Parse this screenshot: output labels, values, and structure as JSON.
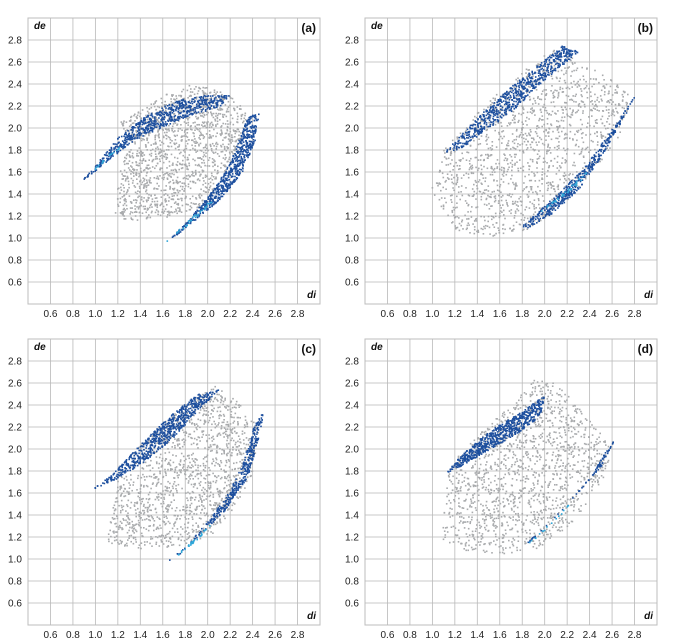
{
  "figure": {
    "colors": {
      "background": "#ffffff",
      "grid": "#b9b9b9",
      "plot_border": "#bdbdbd",
      "scatter_grey": "#a9abad",
      "scatter_blue": "#1d4f9e",
      "scatter_light": "#2fa6d8"
    }
  },
  "chart_data": [
    {
      "panel": "(a)",
      "type": "scatter",
      "xlabel": "di",
      "ylabel": "de",
      "x_ticks": [
        "0.6",
        "0.8",
        "1.0",
        "1.2",
        "1.4",
        "1.6",
        "1.8",
        "2.0",
        "2.2",
        "2.4",
        "2.6",
        "2.8"
      ],
      "y_ticks": [
        "2.8",
        "2.6",
        "2.4",
        "2.2",
        "2.0",
        "1.8",
        "1.6",
        "1.4",
        "1.2",
        "1.0",
        "0.8",
        "0.6"
      ],
      "xlim": [
        0.4,
        3.0
      ],
      "ylim": [
        0.4,
        3.0
      ],
      "grid": true,
      "regions": {
        "grey": [
          [
            1.15,
            1.18
          ],
          [
            1.2,
            1.55
          ],
          [
            1.3,
            1.9
          ],
          [
            1.2,
            2.05
          ],
          [
            1.45,
            2.2
          ],
          [
            1.6,
            2.3
          ],
          [
            1.8,
            2.4
          ],
          [
            2.0,
            2.38
          ],
          [
            2.2,
            2.3
          ],
          [
            2.35,
            2.15
          ],
          [
            2.3,
            1.9
          ],
          [
            2.15,
            1.6
          ],
          [
            1.95,
            1.3
          ],
          [
            1.7,
            1.2
          ],
          [
            1.4,
            1.15
          ]
        ],
        "blue": [
          [
            [
              0.85,
              1.5
            ],
            [
              1.0,
              1.67
            ],
            [
              1.2,
              1.92
            ],
            [
              1.45,
              2.12
            ],
            [
              1.7,
              2.25
            ],
            [
              1.95,
              2.3
            ],
            [
              2.2,
              2.3
            ],
            [
              2.1,
              2.2
            ],
            [
              1.85,
              2.12
            ],
            [
              1.6,
              2.02
            ],
            [
              1.35,
              1.9
            ],
            [
              1.12,
              1.72
            ],
            [
              0.95,
              1.58
            ]
          ],
          [
            [
              1.5,
              0.85
            ],
            [
              1.8,
              1.1
            ],
            [
              2.1,
              1.35
            ],
            [
              2.3,
              1.6
            ],
            [
              2.42,
              1.9
            ],
            [
              2.45,
              2.15
            ],
            [
              2.35,
              2.1
            ],
            [
              2.2,
              1.7
            ],
            [
              2.05,
              1.45
            ],
            [
              1.85,
              1.2
            ],
            [
              1.62,
              0.95
            ]
          ]
        ],
        "light": [
          [
            [
              0.9,
              1.55
            ],
            [
              1.1,
              1.75
            ],
            [
              1.3,
              1.9
            ],
            [
              1.25,
              1.86
            ],
            [
              1.05,
              1.68
            ]
          ],
          [
            [
              1.6,
              0.95
            ],
            [
              1.85,
              1.15
            ],
            [
              2.05,
              1.35
            ],
            [
              2.0,
              1.33
            ],
            [
              1.8,
              1.14
            ]
          ]
        ]
      }
    },
    {
      "panel": "(b)",
      "type": "scatter",
      "xlabel": "di",
      "ylabel": "de",
      "x_ticks": [
        "0.6",
        "0.8",
        "1.0",
        "1.2",
        "1.4",
        "1.6",
        "1.8",
        "2.0",
        "2.2",
        "2.4",
        "2.6",
        "2.8"
      ],
      "y_ticks": [
        "2.8",
        "2.6",
        "2.4",
        "2.2",
        "2.0",
        "1.8",
        "1.6",
        "1.4",
        "1.2",
        "1.0",
        "0.8",
        "0.6"
      ],
      "xlim": [
        0.4,
        3.0
      ],
      "ylim": [
        0.4,
        3.0
      ],
      "grid": true,
      "regions": {
        "grey": [
          [
            0.98,
            1.45
          ],
          [
            1.05,
            1.75
          ],
          [
            1.3,
            2.05
          ],
          [
            1.6,
            2.35
          ],
          [
            1.9,
            2.6
          ],
          [
            2.1,
            2.75
          ],
          [
            2.3,
            2.6
          ],
          [
            2.55,
            2.5
          ],
          [
            2.75,
            2.3
          ],
          [
            2.7,
            2.0
          ],
          [
            2.5,
            1.7
          ],
          [
            2.2,
            1.35
          ],
          [
            1.85,
            1.08
          ],
          [
            1.5,
            1.02
          ],
          [
            1.2,
            1.08
          ]
        ],
        "blue": [
          [
            [
              1.1,
              1.78
            ],
            [
              1.3,
              2.0
            ],
            [
              1.6,
              2.3
            ],
            [
              1.9,
              2.55
            ],
            [
              2.15,
              2.75
            ],
            [
              2.3,
              2.7
            ],
            [
              2.0,
              2.45
            ],
            [
              1.75,
              2.2
            ],
            [
              1.5,
              2.0
            ],
            [
              1.25,
              1.82
            ]
          ],
          [
            [
              1.78,
              1.1
            ],
            [
              2.05,
              1.35
            ],
            [
              2.35,
              1.65
            ],
            [
              2.6,
              2.0
            ],
            [
              2.8,
              2.3
            ],
            [
              2.7,
              2.1
            ],
            [
              2.5,
              1.75
            ],
            [
              2.3,
              1.45
            ],
            [
              2.05,
              1.22
            ],
            [
              1.85,
              1.1
            ]
          ]
        ],
        "light": [
          [
            [
              1.9,
              1.2
            ],
            [
              2.2,
              1.45
            ],
            [
              2.4,
              1.65
            ],
            [
              2.3,
              1.5
            ],
            [
              2.05,
              1.3
            ]
          ]
        ]
      }
    },
    {
      "panel": "(c)",
      "type": "scatter",
      "xlabel": "di",
      "ylabel": "de",
      "x_ticks": [
        "0.6",
        "0.8",
        "1.0",
        "1.2",
        "1.4",
        "1.6",
        "1.8",
        "2.0",
        "2.2",
        "2.4",
        "2.6",
        "2.8"
      ],
      "y_ticks": [
        "2.8",
        "2.6",
        "2.4",
        "2.2",
        "2.0",
        "1.8",
        "1.6",
        "1.4",
        "1.2",
        "1.0",
        "0.8",
        "0.6"
      ],
      "xlim": [
        0.4,
        3.0
      ],
      "ylim": [
        0.4,
        3.0
      ],
      "grid": true,
      "regions": {
        "grey": [
          [
            1.1,
            1.15
          ],
          [
            1.15,
            1.5
          ],
          [
            1.2,
            1.75
          ],
          [
            1.35,
            2.0
          ],
          [
            1.6,
            2.25
          ],
          [
            1.85,
            2.45
          ],
          [
            2.05,
            2.6
          ],
          [
            2.3,
            2.4
          ],
          [
            2.45,
            2.2
          ],
          [
            2.4,
            1.8
          ],
          [
            2.2,
            1.4
          ],
          [
            2.0,
            1.2
          ],
          [
            1.7,
            1.12
          ],
          [
            1.4,
            1.1
          ]
        ],
        "blue": [
          [
            [
              0.97,
              1.64
            ],
            [
              1.15,
              1.78
            ],
            [
              1.4,
              2.05
            ],
            [
              1.65,
              2.3
            ],
            [
              1.9,
              2.5
            ],
            [
              2.1,
              2.55
            ],
            [
              1.9,
              2.35
            ],
            [
              1.7,
              2.12
            ],
            [
              1.45,
              1.9
            ],
            [
              1.2,
              1.74
            ]
          ],
          [
            [
              1.62,
              0.97
            ],
            [
              1.9,
              1.2
            ],
            [
              2.15,
              1.45
            ],
            [
              2.35,
              1.75
            ],
            [
              2.45,
              2.1
            ],
            [
              2.5,
              2.38
            ],
            [
              2.4,
              2.2
            ],
            [
              2.3,
              1.85
            ],
            [
              2.15,
              1.55
            ],
            [
              1.95,
              1.3
            ],
            [
              1.75,
              1.05
            ]
          ]
        ],
        "light": [
          [
            [
              1.68,
              1.0
            ],
            [
              1.9,
              1.18
            ],
            [
              2.05,
              1.35
            ],
            [
              1.98,
              1.28
            ],
            [
              1.78,
              1.1
            ]
          ]
        ]
      }
    },
    {
      "panel": "(d)",
      "type": "scatter",
      "xlabel": "di",
      "ylabel": "de",
      "x_ticks": [
        "0.6",
        "0.8",
        "1.0",
        "1.2",
        "1.4",
        "1.6",
        "1.8",
        "2.0",
        "2.2",
        "2.4",
        "2.6",
        "2.8"
      ],
      "y_ticks": [
        "2.8",
        "2.6",
        "2.4",
        "2.2",
        "2.0",
        "1.8",
        "1.6",
        "1.4",
        "1.2",
        "1.0",
        "0.8",
        "0.6"
      ],
      "xlim": [
        0.4,
        3.0
      ],
      "ylim": [
        0.4,
        3.0
      ],
      "grid": true,
      "regions": {
        "grey": [
          [
            1.05,
            1.2
          ],
          [
            1.1,
            1.6
          ],
          [
            1.15,
            1.85
          ],
          [
            1.4,
            2.15
          ],
          [
            1.7,
            2.4
          ],
          [
            1.95,
            2.7
          ],
          [
            2.2,
            2.5
          ],
          [
            2.45,
            2.2
          ],
          [
            2.6,
            2.0
          ],
          [
            2.5,
            1.7
          ],
          [
            2.25,
            1.35
          ],
          [
            1.95,
            1.1
          ],
          [
            1.6,
            1.05
          ],
          [
            1.3,
            1.08
          ]
        ],
        "blue": [
          [
            [
              1.1,
              1.78
            ],
            [
              1.3,
              2.0
            ],
            [
              1.55,
              2.2
            ],
            [
              1.8,
              2.35
            ],
            [
              2.0,
              2.5
            ],
            [
              1.95,
              2.3
            ],
            [
              1.75,
              2.15
            ],
            [
              1.5,
              2.0
            ],
            [
              1.25,
              1.85
            ]
          ],
          [
            [
              1.78,
              1.1
            ],
            [
              2.05,
              1.35
            ],
            [
              2.3,
              1.62
            ],
            [
              2.5,
              1.85
            ],
            [
              2.62,
              2.1
            ],
            [
              2.55,
              2.0
            ],
            [
              2.4,
              1.75
            ],
            [
              2.15,
              1.45
            ],
            [
              1.9,
              1.2
            ]
          ]
        ],
        "light": [
          [
            [
              1.85,
              1.15
            ],
            [
              2.1,
              1.38
            ],
            [
              2.25,
              1.55
            ],
            [
              2.15,
              1.42
            ],
            [
              1.95,
              1.22
            ]
          ]
        ]
      }
    }
  ]
}
